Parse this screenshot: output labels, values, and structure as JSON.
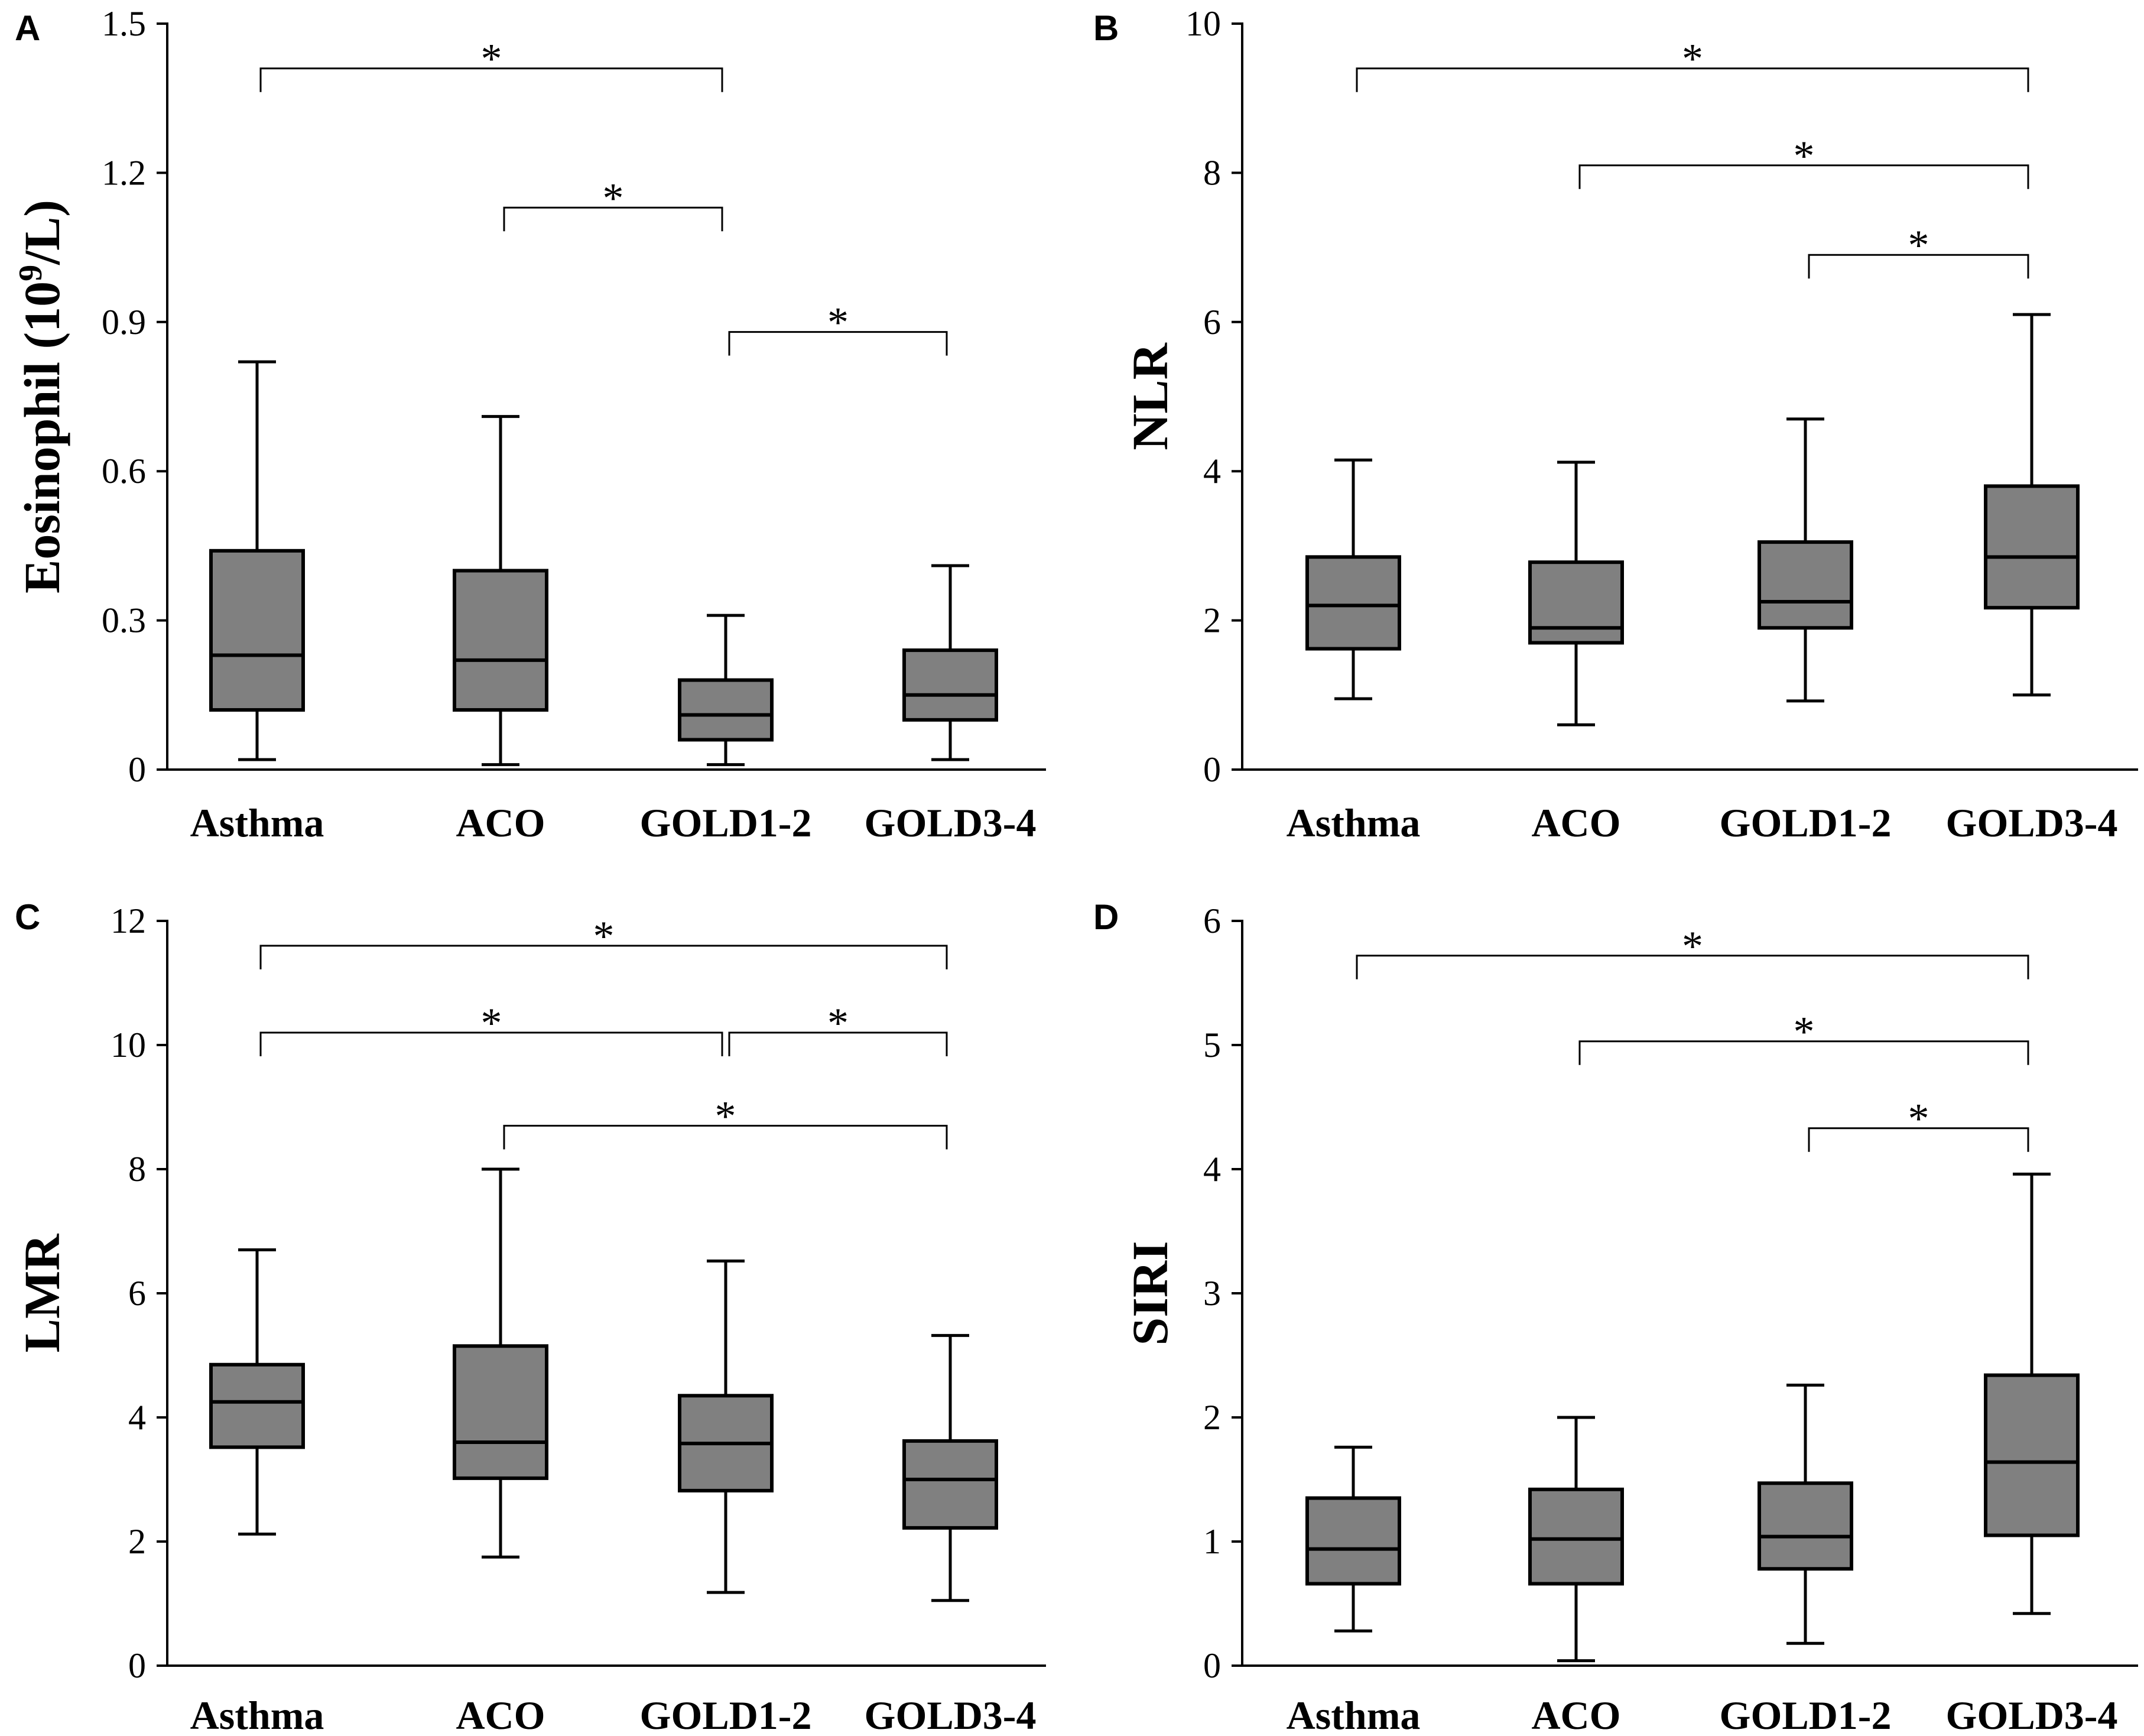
{
  "chart_data": [
    {
      "panel": "A",
      "type": "box",
      "ylabel": "Eosinophil (10",
      "ylabel_sup": "9",
      "ylabel_suffix": "/L)",
      "ylim": [
        0,
        1.5
      ],
      "yticks": [
        "0",
        "0.3",
        "0.6",
        "0.9",
        "1.2",
        "1.5"
      ],
      "ytick_values": [
        0,
        0.3,
        0.6,
        0.9,
        1.2,
        1.5
      ],
      "categories": [
        "Asthma",
        "ACO",
        "GOLD1-2",
        "GOLD3-4"
      ],
      "boxes": [
        {
          "min": 0.02,
          "q1": 0.12,
          "median": 0.23,
          "q3": 0.44,
          "max": 0.82
        },
        {
          "min": 0.01,
          "q1": 0.12,
          "median": 0.22,
          "q3": 0.4,
          "max": 0.71
        },
        {
          "min": 0.01,
          "q1": 0.06,
          "median": 0.11,
          "q3": 0.18,
          "max": 0.31
        },
        {
          "min": 0.02,
          "q1": 0.1,
          "median": 0.15,
          "q3": 0.24,
          "max": 0.41
        }
      ],
      "significance": [
        {
          "from": 0,
          "to": 2,
          "y": 1.41,
          "label": "*"
        },
        {
          "from": 1,
          "to": 2,
          "y": 1.13,
          "label": "*"
        },
        {
          "from": 2,
          "to": 3,
          "y": 0.88,
          "label": "*"
        }
      ]
    },
    {
      "panel": "B",
      "type": "box",
      "ylabel": "NLR",
      "ylim": [
        0,
        10
      ],
      "yticks": [
        "0",
        "2",
        "4",
        "6",
        "8",
        "10"
      ],
      "ytick_values": [
        0,
        2,
        4,
        6,
        8,
        10
      ],
      "categories": [
        "Asthma",
        "ACO",
        "GOLD1-2",
        "GOLD3-4"
      ],
      "boxes": [
        {
          "min": 0.95,
          "q1": 1.62,
          "median": 2.2,
          "q3": 2.85,
          "max": 4.15
        },
        {
          "min": 0.6,
          "q1": 1.7,
          "median": 1.9,
          "q3": 2.78,
          "max": 4.12
        },
        {
          "min": 0.92,
          "q1": 1.9,
          "median": 2.25,
          "q3": 3.05,
          "max": 4.7
        },
        {
          "min": 1.0,
          "q1": 2.17,
          "median": 2.85,
          "q3": 3.8,
          "max": 6.1
        }
      ],
      "significance": [
        {
          "from": 0,
          "to": 3,
          "y": 9.4,
          "label": "*"
        },
        {
          "from": 1,
          "to": 3,
          "y": 8.1,
          "label": "*"
        },
        {
          "from": 2,
          "to": 3,
          "y": 6.9,
          "label": "*"
        }
      ]
    },
    {
      "panel": "C",
      "type": "box",
      "ylabel": "LMR",
      "ylim": [
        0,
        12
      ],
      "yticks": [
        "0",
        "2",
        "4",
        "6",
        "8",
        "10",
        "12"
      ],
      "ytick_values": [
        0,
        2,
        4,
        6,
        8,
        10,
        12
      ],
      "categories": [
        "Asthma",
        "ACO",
        "GOLD1-2",
        "GOLD3-4"
      ],
      "boxes": [
        {
          "min": 2.12,
          "q1": 3.52,
          "median": 4.25,
          "q3": 4.85,
          "max": 6.7
        },
        {
          "min": 1.75,
          "q1": 3.02,
          "median": 3.6,
          "q3": 5.15,
          "max": 8.0
        },
        {
          "min": 1.18,
          "q1": 2.82,
          "median": 3.58,
          "q3": 4.35,
          "max": 6.52
        },
        {
          "min": 1.05,
          "q1": 2.22,
          "median": 3.0,
          "q3": 3.62,
          "max": 5.32
        }
      ],
      "significance": [
        {
          "from": 0,
          "to": 3,
          "y": 11.6,
          "label": "*"
        },
        {
          "from": 0,
          "to": 2,
          "y": 10.2,
          "label": "*"
        },
        {
          "from": 2,
          "to": 3,
          "y": 10.2,
          "label": "*"
        },
        {
          "from": 1,
          "to": 3,
          "y": 8.7,
          "label": "*"
        }
      ]
    },
    {
      "panel": "D",
      "type": "box",
      "ylabel": "SIRI",
      "ylim": [
        0,
        6
      ],
      "yticks": [
        "0",
        "1",
        "2",
        "3",
        "4",
        "5",
        "6"
      ],
      "ytick_values": [
        0,
        1,
        2,
        3,
        4,
        5,
        6
      ],
      "categories": [
        "Asthma",
        "ACO",
        "GOLD1-2",
        "GOLD3-4"
      ],
      "boxes": [
        {
          "min": 0.28,
          "q1": 0.66,
          "median": 0.94,
          "q3": 1.35,
          "max": 1.76
        },
        {
          "min": 0.04,
          "q1": 0.66,
          "median": 1.02,
          "q3": 1.42,
          "max": 2.0
        },
        {
          "min": 0.18,
          "q1": 0.78,
          "median": 1.04,
          "q3": 1.47,
          "max": 2.26
        },
        {
          "min": 0.42,
          "q1": 1.05,
          "median": 1.64,
          "q3": 2.34,
          "max": 3.96
        }
      ],
      "significance": [
        {
          "from": 0,
          "to": 3,
          "y": 5.72,
          "label": "*"
        },
        {
          "from": 1,
          "to": 3,
          "y": 5.03,
          "label": "*"
        },
        {
          "from": 2,
          "to": 3,
          "y": 4.33,
          "label": "*"
        }
      ]
    }
  ]
}
